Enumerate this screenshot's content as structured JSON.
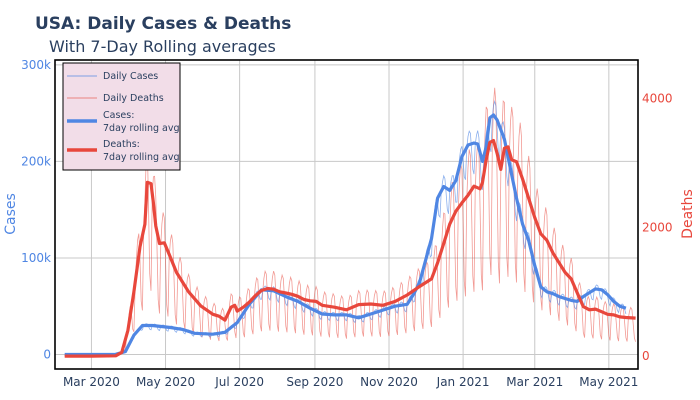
{
  "chart_data": {
    "type": "line",
    "title": "USA: Daily Cases & Deaths",
    "subtitle": "With 7-Day Rolling averages",
    "xlabel": "",
    "ylabel_left": "Cases",
    "ylabel_right": "Deaths",
    "x_ticks": [
      "Mar 2020",
      "May 2020",
      "Jul 2020",
      "Sep 2020",
      "Nov 2020",
      "Jan 2021",
      "Mar 2021",
      "May 2021"
    ],
    "x_range_days": [
      -30,
      450
    ],
    "y_left_range": [
      -15000,
      305000
    ],
    "y_left_ticks": [
      {
        "value": 0,
        "label": "0"
      },
      {
        "value": 100000,
        "label": "100k"
      },
      {
        "value": 200000,
        "label": "200k"
      },
      {
        "value": 300000,
        "label": "300k"
      }
    ],
    "y_right_range": [
      -200,
      4600
    ],
    "y_right_ticks": [
      {
        "value": 0,
        "label": "0"
      },
      {
        "value": 2000,
        "label": "2000"
      },
      {
        "value": 4000,
        "label": "4000"
      }
    ],
    "legend": {
      "position": "top-left",
      "entries": [
        "Daily Cases",
        "Daily Deaths",
        "Cases:",
        "7day rolling avg",
        "Deaths:",
        "7day rolling avg"
      ]
    },
    "colors": {
      "cases": "#4f86e3",
      "deaths": "#e8473c",
      "legend_bg": "#f2dde8"
    },
    "series": [
      {
        "name": "Cases: 7day rolling avg",
        "axis": "left",
        "points": [
          [
            -22,
            0
          ],
          [
            0,
            0
          ],
          [
            20,
            200
          ],
          [
            28,
            3000
          ],
          [
            35,
            20000
          ],
          [
            42,
            30000
          ],
          [
            50,
            30000
          ],
          [
            65,
            28000
          ],
          [
            75,
            26000
          ],
          [
            85,
            22000
          ],
          [
            100,
            21000
          ],
          [
            110,
            23000
          ],
          [
            120,
            33000
          ],
          [
            130,
            52000
          ],
          [
            140,
            67000
          ],
          [
            150,
            66000
          ],
          [
            160,
            60000
          ],
          [
            170,
            55000
          ],
          [
            180,
            48000
          ],
          [
            190,
            42000
          ],
          [
            200,
            41000
          ],
          [
            210,
            41000
          ],
          [
            220,
            38000
          ],
          [
            230,
            42000
          ],
          [
            240,
            46000
          ],
          [
            250,
            50000
          ],
          [
            260,
            52000
          ],
          [
            265,
            62000
          ],
          [
            270,
            74000
          ],
          [
            280,
            120000
          ],
          [
            285,
            162000
          ],
          [
            290,
            174000
          ],
          [
            295,
            170000
          ],
          [
            300,
            180000
          ],
          [
            305,
            205000
          ],
          [
            310,
            217000
          ],
          [
            315,
            219000
          ],
          [
            318,
            218000
          ],
          [
            322,
            200000
          ],
          [
            325,
            215000
          ],
          [
            328,
            245000
          ],
          [
            331,
            248000
          ],
          [
            334,
            243000
          ],
          [
            340,
            223000
          ],
          [
            345,
            192000
          ],
          [
            350,
            162000
          ],
          [
            355,
            135000
          ],
          [
            360,
            118000
          ],
          [
            365,
            92000
          ],
          [
            370,
            70000
          ],
          [
            375,
            65000
          ],
          [
            380,
            63000
          ],
          [
            385,
            60000
          ],
          [
            390,
            58000
          ],
          [
            395,
            56000
          ],
          [
            400,
            55000
          ],
          [
            405,
            60000
          ],
          [
            410,
            64000
          ],
          [
            415,
            68000
          ],
          [
            420,
            67000
          ],
          [
            425,
            62000
          ],
          [
            430,
            55000
          ],
          [
            435,
            50000
          ],
          [
            440,
            48000
          ]
        ]
      },
      {
        "name": "Deaths: 7day rolling avg",
        "axis": "right",
        "points": [
          [
            -22,
            0
          ],
          [
            0,
            0
          ],
          [
            20,
            5
          ],
          [
            25,
            60
          ],
          [
            30,
            400
          ],
          [
            35,
            1000
          ],
          [
            40,
            1700
          ],
          [
            44,
            2050
          ],
          [
            46,
            2700
          ],
          [
            49,
            2680
          ],
          [
            51,
            2380
          ],
          [
            53,
            2020
          ],
          [
            56,
            1750
          ],
          [
            60,
            1760
          ],
          [
            64,
            1580
          ],
          [
            70,
            1300
          ],
          [
            80,
            1000
          ],
          [
            90,
            780
          ],
          [
            100,
            650
          ],
          [
            105,
            620
          ],
          [
            110,
            560
          ],
          [
            115,
            760
          ],
          [
            118,
            790
          ],
          [
            120,
            700
          ],
          [
            125,
            760
          ],
          [
            130,
            840
          ],
          [
            135,
            940
          ],
          [
            140,
            1020
          ],
          [
            145,
            1050
          ],
          [
            150,
            1040
          ],
          [
            155,
            1000
          ],
          [
            160,
            980
          ],
          [
            165,
            960
          ],
          [
            170,
            930
          ],
          [
            175,
            880
          ],
          [
            180,
            860
          ],
          [
            185,
            850
          ],
          [
            190,
            790
          ],
          [
            200,
            760
          ],
          [
            210,
            720
          ],
          [
            220,
            800
          ],
          [
            230,
            810
          ],
          [
            240,
            790
          ],
          [
            250,
            850
          ],
          [
            260,
            950
          ],
          [
            270,
            1080
          ],
          [
            280,
            1200
          ],
          [
            285,
            1450
          ],
          [
            290,
            1750
          ],
          [
            295,
            2050
          ],
          [
            300,
            2250
          ],
          [
            305,
            2380
          ],
          [
            310,
            2500
          ],
          [
            315,
            2640
          ],
          [
            320,
            2600
          ],
          [
            322,
            2700
          ],
          [
            325,
            3050
          ],
          [
            328,
            3320
          ],
          [
            331,
            3350
          ],
          [
            334,
            3150
          ],
          [
            337,
            2900
          ],
          [
            340,
            3230
          ],
          [
            343,
            3250
          ],
          [
            346,
            3050
          ],
          [
            350,
            3020
          ],
          [
            355,
            2750
          ],
          [
            360,
            2450
          ],
          [
            365,
            2150
          ],
          [
            370,
            1900
          ],
          [
            375,
            1800
          ],
          [
            380,
            1600
          ],
          [
            385,
            1450
          ],
          [
            390,
            1300
          ],
          [
            395,
            1200
          ],
          [
            400,
            980
          ],
          [
            405,
            770
          ],
          [
            410,
            720
          ],
          [
            415,
            730
          ],
          [
            420,
            690
          ],
          [
            425,
            650
          ],
          [
            430,
            640
          ],
          [
            435,
            610
          ],
          [
            440,
            600
          ],
          [
            448,
            590
          ]
        ]
      },
      {
        "name": "Daily Cases",
        "axis": "left",
        "derived_from": "Cases: 7day rolling avg",
        "weekly_oscillation": 0.13,
        "peak_max": 300000
      },
      {
        "name": "Daily Deaths",
        "axis": "right",
        "derived_from": "Deaths: 7day rolling avg",
        "weekly_oscillation": 0.55,
        "peak_max": 4400
      }
    ]
  }
}
